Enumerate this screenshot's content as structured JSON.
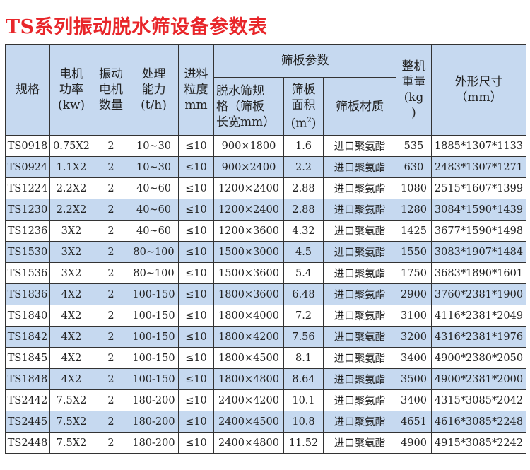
{
  "title": "TS系列振动脱水筛设备参数表",
  "header": {
    "spec": "规格",
    "motor_power": [
      "电机",
      "功率",
      "(kw)"
    ],
    "motor_count": [
      "振动",
      "电机",
      "数量"
    ],
    "capacity": [
      "处理",
      "能力",
      "(t/h)"
    ],
    "feed_size": [
      "进料",
      "粒度",
      "mm"
    ],
    "screen_group": "筛板参数",
    "screen_spec": [
      "脱水筛规",
      "格（筛板",
      "长宽mm）"
    ],
    "screen_area": [
      "筛板",
      "面积",
      "(m",
      "2",
      ")"
    ],
    "screen_material": "筛板材质",
    "weight": [
      "整机",
      "重量",
      "(kg",
      ")"
    ],
    "dimensions": [
      "外形尺寸",
      "（mm）"
    ]
  },
  "rows": [
    [
      "TS0918",
      "0.75X2",
      "2",
      "10~30",
      "≤10",
      "900×1800",
      "1.6",
      "进口聚氨酯",
      "535",
      "1885*1307*1133"
    ],
    [
      "TS0924",
      "1.1X2",
      "2",
      "10~30",
      "≤10",
      "900×2400",
      "2.2",
      "进口聚氨酯",
      "630",
      "2483*1307*1271"
    ],
    [
      "TS1224",
      "2.2X2",
      "2",
      "40~60",
      "≤10",
      "1200×2400",
      "2.88",
      "进口聚氨酯",
      "1080",
      "2515*1607*1399"
    ],
    [
      "TS1230",
      "2.2X2",
      "2",
      "40~60",
      "≤10",
      "1200×2400",
      "2.88",
      "进口聚氨酯",
      "1280",
      "3084*1590*1439"
    ],
    [
      "TS1236",
      "3X2",
      "2",
      "40~60",
      "≤10",
      "1200×3600",
      "4.32",
      "进口聚氨酯",
      "1425",
      "3677*1590*1498"
    ],
    [
      "TS1530",
      "3X2",
      "2",
      "80~100",
      "≤10",
      "1500×3000",
      "4.5",
      "进口聚氨酯",
      "1550",
      "3083*1907*1484"
    ],
    [
      "TS1536",
      "3X2",
      "2",
      "80~100",
      "≤10",
      "1500×3600",
      "5.4",
      "进口聚氨酯",
      "1750",
      "3683*1890*1601"
    ],
    [
      "TS1836",
      "4X2",
      "2",
      "100-150",
      "≤10",
      "1800×3600",
      "6.48",
      "进口聚氨酯",
      "2900",
      "3760*2381*1900"
    ],
    [
      "TS1840",
      "4X2",
      "2",
      "100-150",
      "≤10",
      "1800×4000",
      "7.2",
      "进口聚氨酯",
      "3100",
      "4116*2381*2049"
    ],
    [
      "TS1842",
      "4X2",
      "2",
      "100-150",
      "≤10",
      "1800×4200",
      "7.56",
      "进口聚氨酯",
      "3200",
      "4316*2381*1976"
    ],
    [
      "TS1845",
      "4X2",
      "2",
      "100-150",
      "≤10",
      "1800×4500",
      "8.1",
      "进口聚氨酯",
      "3400",
      "4900*2380*2050"
    ],
    [
      "TS1848",
      "4X2",
      "2",
      "100-150",
      "≤10",
      "1800×4800",
      "8.64",
      "进口聚氨酯",
      "3500",
      "4900*2381*2000"
    ],
    [
      "TS2442",
      "7.5X2",
      "2",
      "180-200",
      "≤10",
      "2400×4200",
      "10.1",
      "进口聚氨酯",
      "3400",
      "4315*3085*2042"
    ],
    [
      "TS2445",
      "7.5X2",
      "2",
      "180-200",
      "≤10",
      "2400×4500",
      "10.8",
      "进口聚氨酯",
      "4651",
      "4616*3085*2248"
    ],
    [
      "TS2448",
      "7.5X2",
      "2",
      "180-200",
      "≤10",
      "2400×4800",
      "11.52",
      "进口聚氨酯",
      "4900",
      "4915*3085*2242"
    ]
  ],
  "colors": {
    "title": "#e8262a",
    "header_bg": "#c6d9f0",
    "alt_row_bg": "#c6d9f0"
  }
}
